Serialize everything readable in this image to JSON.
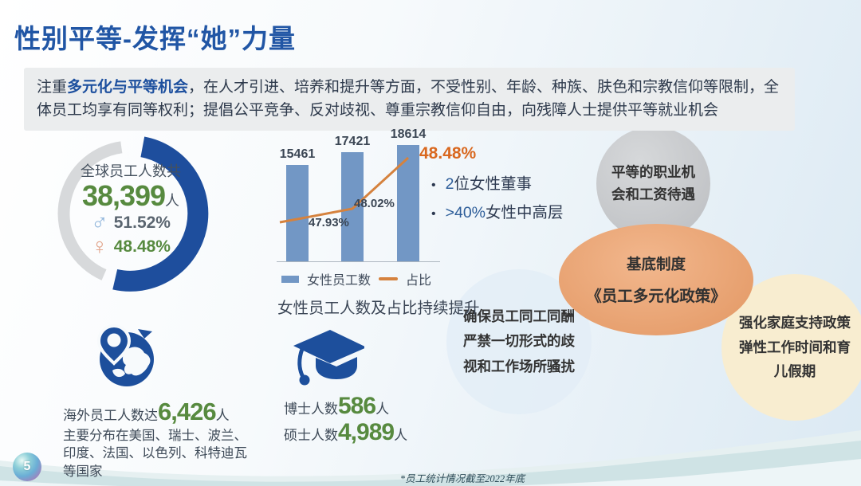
{
  "slide": {
    "title": "性别平等-发挥“她”力量",
    "page_number": "5",
    "footnote": "*员工统计情况截至2022年底"
  },
  "banner": {
    "prefix": "注重",
    "highlight": "多元化与平等机会",
    "body": "，在人才引进、培养和提升等方面，不受性别、年龄、种族、肤色和宗教信仰等限制，全体员工均享有同等权利；提倡公平竞争、反对歧视、尊重宗教信仰自由，向残障人士提供平等就业机会"
  },
  "donut": {
    "label": "全球员工人数共",
    "total": "38,399",
    "unit": "人",
    "male_symbol": "♂",
    "male_pct": "51.52%",
    "female_symbol": "♀",
    "female_pct": "48.48%"
  },
  "bar_chart": {
    "legend_bar": "女性员工数",
    "legend_line": "占比",
    "caption": "女性员工人数及占比持续提升"
  },
  "bullets": [
    {
      "highlight": "2",
      "rest": "位女性董事"
    },
    {
      "highlight": ">40%",
      "rest": "女性中高层"
    }
  ],
  "circles": {
    "career": "平等的职业机会和工资待遇",
    "policy_title": "基底制度",
    "policy_name": "《员工多元化政策》",
    "equal_pay": "确保员工同工同酬严禁一切形式的歧视和工作场所骚扰",
    "family": "强化家庭支持政策弹性工作时间和育儿假期"
  },
  "overseas": {
    "label": "海外员工人数达",
    "value": "6,426",
    "unit": "人",
    "desc": "主要分布在美国、瑞士、波兰、印度、法国、以色列、科特迪瓦等国家"
  },
  "education": {
    "phd_label": "博士人数",
    "phd_value": "586",
    "phd_unit": "人",
    "master_label": "硕士人数",
    "master_value": "4,989",
    "master_unit": "人"
  },
  "colors": {
    "accent_blue": "#2156a5",
    "green": "#578a3f",
    "donut_blue": "#1e4e9d",
    "donut_gray": "#d7d9db",
    "bar_blue": "#7297c5",
    "line_orange": "#d5823e",
    "pct_orange": "#d9681f"
  },
  "chart_data": [
    {
      "type": "pie",
      "title": "全球员工人数共38,399人",
      "slices": [
        {
          "label": "男性",
          "value": 51.52
        },
        {
          "label": "女性",
          "value": 48.48
        }
      ],
      "unit": "%",
      "style": "donut, blue segment = male share, gray = remainder"
    },
    {
      "type": "bar",
      "title": "女性员工人数及占比持续提升",
      "categories": [
        "",
        "",
        ""
      ],
      "series": [
        {
          "name": "女性员工数",
          "type": "bar",
          "values": [
            15461,
            17421,
            18614
          ]
        },
        {
          "name": "占比",
          "type": "line",
          "values": [
            47.93,
            48.02,
            48.48
          ],
          "unit": "%"
        }
      ],
      "ylim": [
        0,
        20000
      ],
      "grid": false,
      "legend_position": "bottom"
    }
  ]
}
